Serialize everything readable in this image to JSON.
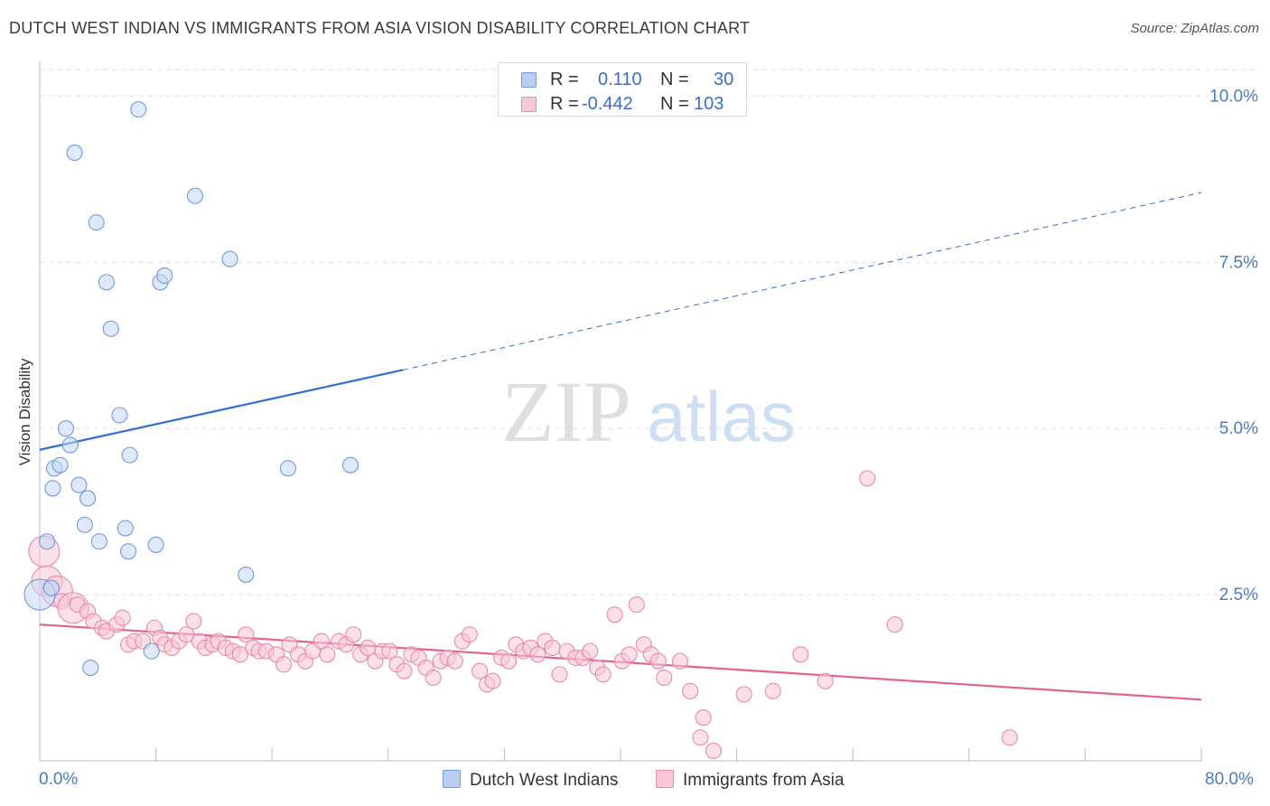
{
  "title": "DUTCH WEST INDIAN VS IMMIGRANTS FROM ASIA VISION DISABILITY CORRELATION CHART",
  "source": "Source: ZipAtlas.com",
  "watermark": {
    "zip": "ZIP",
    "atlas": "atlas"
  },
  "legend": {
    "r_label": "R =",
    "n_label": "N =",
    "rows": [
      {
        "r": "0.110",
        "n": "30",
        "fill": "#b9cff2",
        "stroke": "#6f9ad8"
      },
      {
        "r": "-0.442",
        "n": "103",
        "fill": "#f9c7d6",
        "stroke": "#e88aa8"
      }
    ]
  },
  "bottom_legend": [
    "Dutch West Indians",
    "Immigrants from Asia"
  ],
  "x_tick_labels": {
    "left": "0.0%",
    "right": "80.0%"
  },
  "chart_data": {
    "type": "scatter",
    "title": "DUTCH WEST INDIAN VS IMMIGRANTS FROM ASIA VISION DISABILITY CORRELATION CHART",
    "xlabel": "",
    "ylabel": "Vision Disability",
    "xlim": [
      0,
      80
    ],
    "ylim": [
      0,
      10.4
    ],
    "y_ticks": [
      {
        "v": 2.5,
        "label": "2.5%"
      },
      {
        "v": 5.0,
        "label": "5.0%"
      },
      {
        "v": 7.5,
        "label": "7.5%"
      },
      {
        "v": 10.0,
        "label": "10.0%"
      }
    ],
    "grid": true,
    "series": [
      {
        "name": "Dutch West Indians",
        "color": "#6f9ad8",
        "fill": "#c4d7f4",
        "trend": {
          "x0": 0,
          "y0": 4.68,
          "x1": 25,
          "y1": 5.88,
          "dash_to_x": 80,
          "dash_to_y": 8.55,
          "color": "#2f6fcf"
        },
        "points": [
          [
            0.0,
            2.5,
            2
          ],
          [
            0.5,
            3.3,
            1
          ],
          [
            0.8,
            2.6,
            1
          ],
          [
            0.9,
            4.1,
            1
          ],
          [
            1.0,
            4.4,
            1
          ],
          [
            1.4,
            4.45,
            1
          ],
          [
            1.8,
            5.0,
            1
          ],
          [
            2.1,
            4.75,
            1
          ],
          [
            2.4,
            9.15,
            1
          ],
          [
            2.7,
            4.15,
            1
          ],
          [
            3.1,
            3.55,
            1
          ],
          [
            3.3,
            3.95,
            1
          ],
          [
            3.5,
            1.4,
            1
          ],
          [
            3.9,
            8.1,
            1
          ],
          [
            4.1,
            3.3,
            1
          ],
          [
            4.6,
            7.2,
            1
          ],
          [
            4.9,
            6.5,
            1
          ],
          [
            5.5,
            5.2,
            1
          ],
          [
            5.9,
            3.5,
            1
          ],
          [
            6.1,
            3.15,
            1
          ],
          [
            6.2,
            4.6,
            1
          ],
          [
            6.8,
            9.8,
            1
          ],
          [
            7.7,
            1.65,
            1
          ],
          [
            8.0,
            3.25,
            1
          ],
          [
            8.3,
            7.2,
            1
          ],
          [
            8.6,
            7.3,
            1
          ],
          [
            10.7,
            8.5,
            1
          ],
          [
            13.1,
            7.55,
            1
          ],
          [
            14.2,
            2.8,
            1
          ],
          [
            17.1,
            4.4,
            1
          ],
          [
            21.4,
            4.45,
            1
          ]
        ]
      },
      {
        "name": "Immigrants from Asia",
        "color": "#e88aa8",
        "fill": "#f8c6d5",
        "trend": {
          "x0": 0,
          "y0": 2.05,
          "x1": 80,
          "y1": 0.92,
          "color": "#e0648f"
        },
        "points": [
          [
            0.3,
            3.15,
            2
          ],
          [
            0.5,
            2.7,
            2
          ],
          [
            1.2,
            2.55,
            2
          ],
          [
            1.5,
            2.4,
            1
          ],
          [
            2.3,
            2.3,
            2
          ],
          [
            2.6,
            2.35,
            1
          ],
          [
            3.3,
            2.25,
            1
          ],
          [
            3.7,
            2.1,
            1
          ],
          [
            4.3,
            2.0,
            1
          ],
          [
            4.6,
            1.95,
            1
          ],
          [
            5.3,
            2.05,
            1
          ],
          [
            5.7,
            2.15,
            1
          ],
          [
            6.1,
            1.75,
            1
          ],
          [
            6.5,
            1.8,
            1
          ],
          [
            7.1,
            1.8,
            1
          ],
          [
            7.9,
            2.0,
            1
          ],
          [
            8.3,
            1.85,
            1
          ],
          [
            8.6,
            1.75,
            1
          ],
          [
            9.1,
            1.7,
            1
          ],
          [
            9.6,
            1.8,
            1
          ],
          [
            10.1,
            1.9,
            1
          ],
          [
            10.6,
            2.1,
            1
          ],
          [
            11.0,
            1.8,
            1
          ],
          [
            11.4,
            1.7,
            1
          ],
          [
            11.9,
            1.75,
            1
          ],
          [
            12.3,
            1.8,
            1
          ],
          [
            12.8,
            1.7,
            1
          ],
          [
            13.3,
            1.65,
            1
          ],
          [
            13.8,
            1.6,
            1
          ],
          [
            14.2,
            1.9,
            1
          ],
          [
            14.7,
            1.7,
            1
          ],
          [
            15.1,
            1.65,
            1
          ],
          [
            15.6,
            1.65,
            1
          ],
          [
            16.3,
            1.6,
            1
          ],
          [
            16.8,
            1.45,
            1
          ],
          [
            17.2,
            1.75,
            1
          ],
          [
            17.8,
            1.6,
            1
          ],
          [
            18.3,
            1.5,
            1
          ],
          [
            18.8,
            1.65,
            1
          ],
          [
            19.4,
            1.8,
            1
          ],
          [
            19.8,
            1.6,
            1
          ],
          [
            20.6,
            1.8,
            1
          ],
          [
            21.1,
            1.75,
            1
          ],
          [
            21.6,
            1.9,
            1
          ],
          [
            22.1,
            1.6,
            1
          ],
          [
            22.6,
            1.7,
            1
          ],
          [
            23.1,
            1.5,
            1
          ],
          [
            23.6,
            1.65,
            1
          ],
          [
            24.1,
            1.65,
            1
          ],
          [
            24.6,
            1.45,
            1
          ],
          [
            25.1,
            1.35,
            1
          ],
          [
            25.6,
            1.6,
            1
          ],
          [
            26.1,
            1.55,
            1
          ],
          [
            26.6,
            1.4,
            1
          ],
          [
            27.1,
            1.25,
            1
          ],
          [
            27.6,
            1.5,
            1
          ],
          [
            28.1,
            1.55,
            1
          ],
          [
            28.6,
            1.5,
            1
          ],
          [
            29.1,
            1.8,
            1
          ],
          [
            29.6,
            1.9,
            1
          ],
          [
            30.3,
            1.35,
            1
          ],
          [
            30.8,
            1.15,
            1
          ],
          [
            31.2,
            1.2,
            1
          ],
          [
            31.8,
            1.55,
            1
          ],
          [
            32.3,
            1.5,
            1
          ],
          [
            32.8,
            1.75,
            1
          ],
          [
            33.3,
            1.65,
            1
          ],
          [
            33.8,
            1.7,
            1
          ],
          [
            34.3,
            1.6,
            1
          ],
          [
            34.8,
            1.8,
            1
          ],
          [
            35.3,
            1.7,
            1
          ],
          [
            35.8,
            1.3,
            1
          ],
          [
            36.3,
            1.65,
            1
          ],
          [
            36.9,
            1.55,
            1
          ],
          [
            37.4,
            1.55,
            1
          ],
          [
            37.9,
            1.65,
            1
          ],
          [
            38.4,
            1.4,
            1
          ],
          [
            38.8,
            1.3,
            1
          ],
          [
            39.6,
            2.2,
            1
          ],
          [
            40.1,
            1.5,
            1
          ],
          [
            40.6,
            1.6,
            1
          ],
          [
            41.1,
            2.35,
            1
          ],
          [
            41.6,
            1.75,
            1
          ],
          [
            42.1,
            1.6,
            1
          ],
          [
            42.6,
            1.5,
            1
          ],
          [
            43.0,
            1.25,
            1
          ],
          [
            44.1,
            1.5,
            1
          ],
          [
            44.8,
            1.05,
            1
          ],
          [
            45.7,
            0.65,
            1
          ],
          [
            46.4,
            0.15,
            1
          ],
          [
            48.5,
            1.0,
            1
          ],
          [
            50.5,
            1.05,
            1
          ],
          [
            52.4,
            1.6,
            1
          ],
          [
            54.1,
            1.2,
            1
          ],
          [
            57.0,
            4.25,
            1
          ],
          [
            58.9,
            2.05,
            1
          ],
          [
            66.8,
            0.35,
            1
          ],
          [
            45.5,
            0.35,
            1
          ]
        ]
      }
    ]
  }
}
